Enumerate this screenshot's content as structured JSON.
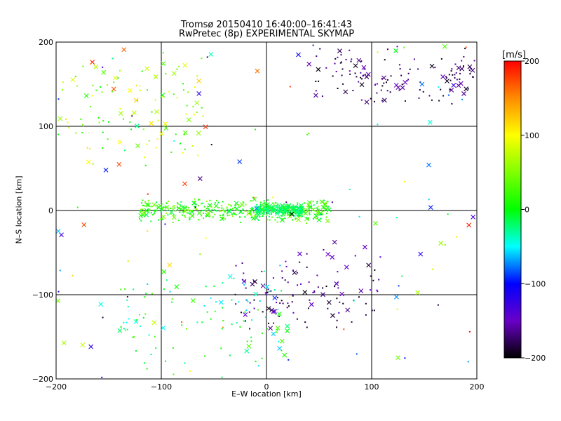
{
  "chart_data": {
    "type": "scatter",
    "title": "Tromsø 20150410 16:40:00–16:41:43",
    "subtitle": "RwPretec (8p) EXPERIMENTAL SKYMAP",
    "xlabel": "E–W location [km]",
    "ylabel": "N–S location [km]",
    "xlim": [
      -200,
      200
    ],
    "ylim": [
      -200,
      200
    ],
    "xticks": [
      -200,
      -100,
      0,
      100,
      200
    ],
    "yticks": [
      -200,
      -100,
      0,
      100,
      200
    ],
    "xtick_labels": [
      "−200",
      "−100",
      "0",
      "100",
      "200"
    ],
    "ytick_labels": [
      "−200",
      "−100",
      "0",
      "100",
      "200"
    ],
    "grid": true,
    "marker_types": [
      "x (large)",
      "dot (small)"
    ],
    "colorbar": {
      "label": "[m/s]",
      "range": [
        -200,
        200
      ],
      "ticks": [
        200,
        100,
        0,
        -100,
        -200
      ],
      "tick_labels": [
        "200",
        "100",
        "0",
        "−100",
        "−200"
      ],
      "colormap": "rainbow: black (-200) → purple → blue (-100) → cyan → green (0) → yellow (100) → orange → red (200)"
    },
    "clusters": [
      {
        "name": "central E-W band",
        "x_range": [
          -120,
          60
        ],
        "y_range": [
          -15,
          15
        ],
        "velocity_range": [
          -20,
          60
        ]
      },
      {
        "name": "tight cluster east of origin",
        "x_range": [
          -10,
          35
        ],
        "y_range": [
          -8,
          8
        ],
        "velocity_range": [
          -30,
          -10
        ]
      },
      {
        "name": "north-east region",
        "x_range": [
          40,
          200
        ],
        "y_range": [
          120,
          200
        ],
        "velocity_range": [
          -200,
          -150
        ]
      },
      {
        "name": "south-east region",
        "x_range": [
          -30,
          110
        ],
        "y_range": [
          -150,
          -40
        ],
        "velocity_range": [
          -200,
          -140
        ]
      },
      {
        "name": "north-west scattered",
        "x_range": [
          -200,
          -60
        ],
        "y_range": [
          40,
          200
        ],
        "velocity_range": [
          0,
          120
        ]
      },
      {
        "name": "south-west scattered",
        "x_range": [
          -140,
          20
        ],
        "y_range": [
          -200,
          -60
        ],
        "velocity_range": [
          -60,
          40
        ]
      }
    ]
  }
}
